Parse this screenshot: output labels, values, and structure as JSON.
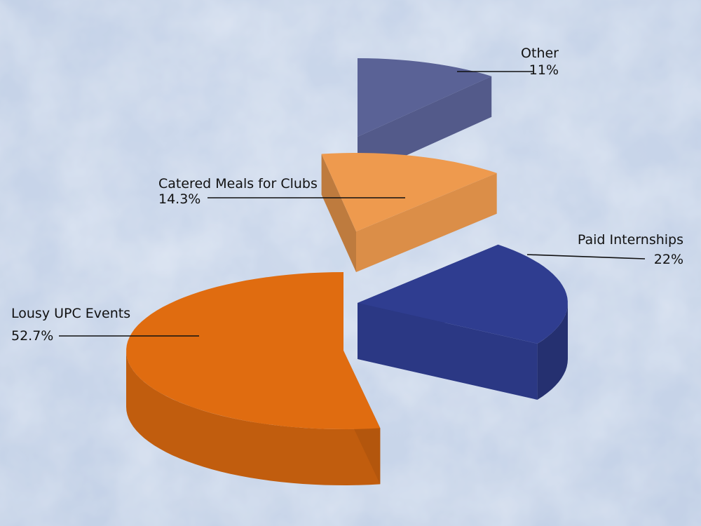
{
  "chart_data": {
    "type": "pie",
    "style": "3d-exploded",
    "categories": [
      "Lousy UPC Events",
      "Paid Internships",
      "Catered Meals for Clubs",
      "Other"
    ],
    "values": [
      52.7,
      22,
      14.3,
      11
    ],
    "value_labels": [
      "52.7%",
      "22%",
      "14.3%",
      "11%"
    ],
    "colors": {
      "lousy_upc_events": "#E06C10",
      "paid_internships": "#2F3D90",
      "catered_meals_for_clubs": "#EE9A4E",
      "other": "#5A6296",
      "background": "#C9D6EA"
    },
    "legend": "none",
    "labels_with_leader_lines": true
  }
}
